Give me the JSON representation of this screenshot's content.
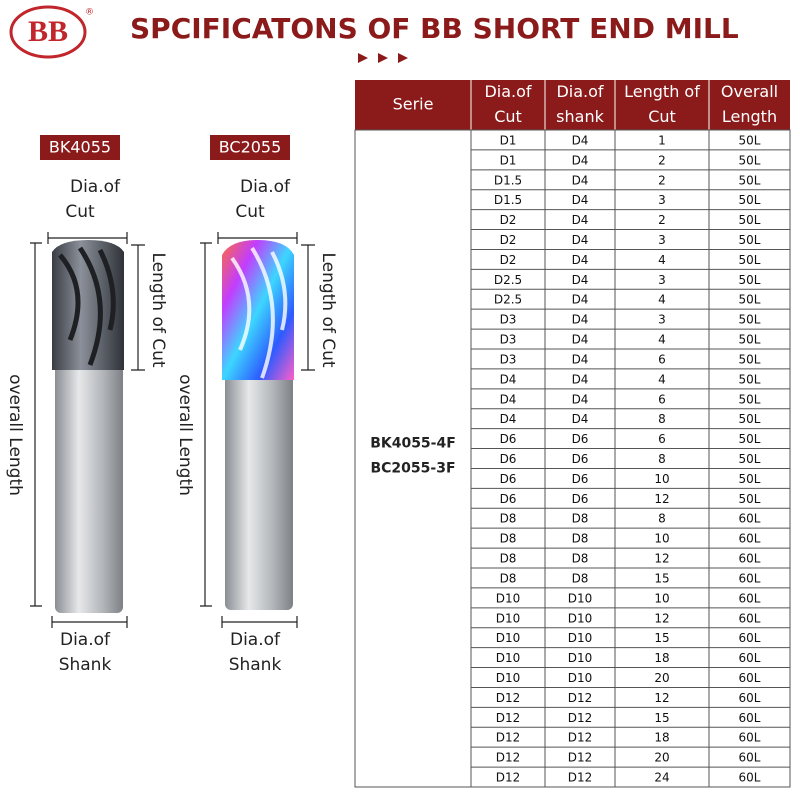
{
  "logo": {
    "text": "BB",
    "mark": "®"
  },
  "title": "SPCIFICATONS OF BB  SHORT END MILL",
  "tools": [
    {
      "model": "BK4055",
      "dia_cut": [
        "Dia.of",
        "Cut"
      ],
      "length_of_cut": "Length of Cut",
      "overall_length": "overall Length",
      "dia_shank": [
        "Dia.of",
        "Shank"
      ]
    },
    {
      "model": "BC2055",
      "dia_cut": [
        "Dia.of",
        "Cut"
      ],
      "length_of_cut": "Length of Cut",
      "overall_length": "overall Length",
      "dia_shank": [
        "Dia.of",
        "Shank"
      ]
    }
  ],
  "table": {
    "headers": [
      [
        "Serie"
      ],
      [
        "Dia.of",
        "Cut"
      ],
      [
        "Dia.of",
        "shank"
      ],
      [
        "Length of",
        "Cut"
      ],
      [
        "Overall",
        "Length"
      ]
    ],
    "serie": [
      "BK4055-4F",
      "BC2055-3F"
    ],
    "rows": [
      [
        "D1",
        "D4",
        1,
        "50L"
      ],
      [
        "D1",
        "D4",
        2,
        "50L"
      ],
      [
        "D1.5",
        "D4",
        2,
        "50L"
      ],
      [
        "D1.5",
        "D4",
        3,
        "50L"
      ],
      [
        "D2",
        "D4",
        2,
        "50L"
      ],
      [
        "D2",
        "D4",
        3,
        "50L"
      ],
      [
        "D2",
        "D4",
        4,
        "50L"
      ],
      [
        "D2.5",
        "D4",
        3,
        "50L"
      ],
      [
        "D2.5",
        "D4",
        4,
        "50L"
      ],
      [
        "D3",
        "D4",
        3,
        "50L"
      ],
      [
        "D3",
        "D4",
        4,
        "50L"
      ],
      [
        "D3",
        "D4",
        6,
        "50L"
      ],
      [
        "D4",
        "D4",
        4,
        "50L"
      ],
      [
        "D4",
        "D4",
        6,
        "50L"
      ],
      [
        "D4",
        "D4",
        8,
        "50L"
      ],
      [
        "D6",
        "D6",
        6,
        "50L"
      ],
      [
        "D6",
        "D6",
        8,
        "50L"
      ],
      [
        "D6",
        "D6",
        10,
        "50L"
      ],
      [
        "D6",
        "D6",
        12,
        "50L"
      ],
      [
        "D8",
        "D8",
        8,
        "60L"
      ],
      [
        "D8",
        "D8",
        10,
        "60L"
      ],
      [
        "D8",
        "D8",
        12,
        "60L"
      ],
      [
        "D8",
        "D8",
        15,
        "60L"
      ],
      [
        "D10",
        "D10",
        10,
        "60L"
      ],
      [
        "D10",
        "D10",
        12,
        "60L"
      ],
      [
        "D10",
        "D10",
        15,
        "60L"
      ],
      [
        "D10",
        "D10",
        18,
        "60L"
      ],
      [
        "D10",
        "D10",
        20,
        "60L"
      ],
      [
        "D12",
        "D12",
        12,
        "60L"
      ],
      [
        "D12",
        "D12",
        15,
        "60L"
      ],
      [
        "D12",
        "D12",
        18,
        "60L"
      ],
      [
        "D12",
        "D12",
        20,
        "60L"
      ],
      [
        "D12",
        "D12",
        24,
        "60L"
      ]
    ]
  }
}
